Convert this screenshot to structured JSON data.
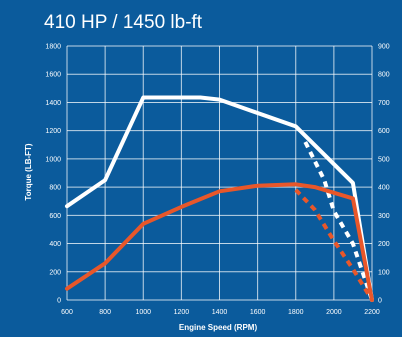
{
  "chart_data": {
    "type": "line",
    "title": "410 HP  /  1450 lb-ft",
    "xlabel": "Engine Speed (RPM)",
    "ylabel": "Torque (LB-FT)",
    "xlim": [
      600,
      2200
    ],
    "ylim": [
      0,
      1800
    ],
    "y2lim": [
      0,
      900
    ],
    "x_ticks": [
      "600",
      "800",
      "1000",
      "1200",
      "1400",
      "1600",
      "1800",
      "2000",
      "2200"
    ],
    "y_ticks": [
      "0",
      "200",
      "400",
      "600",
      "800",
      "1000",
      "1200",
      "1400",
      "1600",
      "1800"
    ],
    "y2_ticks": [
      "0",
      "100",
      "200",
      "300",
      "400",
      "500",
      "600",
      "700",
      "800",
      "900"
    ],
    "grid": true,
    "series": [
      {
        "key": "torque",
        "axis": "left",
        "color": "#ffffff",
        "line_style": "solid",
        "x": [
          600,
          800,
          1000,
          1300,
          1400,
          1800,
          2100,
          2200
        ],
        "y": [
          665,
          850,
          1435,
          1435,
          1420,
          1230,
          830,
          0
        ]
      },
      {
        "key": "torque_governed",
        "axis": "left",
        "color": "#ffffff",
        "line_style": "dashed",
        "x": [
          1850,
          1950,
          2000,
          2100,
          2200
        ],
        "y": [
          1120,
          850,
          630,
          400,
          0
        ]
      },
      {
        "key": "power",
        "axis": "right",
        "color": "#e8572a",
        "line_style": "solid",
        "x": [
          600,
          800,
          1000,
          1200,
          1400,
          1600,
          1800,
          1900,
          2100,
          2200
        ],
        "y": [
          40,
          130,
          270,
          330,
          385,
          405,
          410,
          400,
          360,
          0
        ]
      },
      {
        "key": "power_governed",
        "axis": "right",
        "color": "#e8572a",
        "line_style": "dashed",
        "x": [
          1800,
          1900,
          2000,
          2100,
          2200
        ],
        "y": [
          390,
          320,
          210,
          110,
          0
        ]
      }
    ]
  }
}
